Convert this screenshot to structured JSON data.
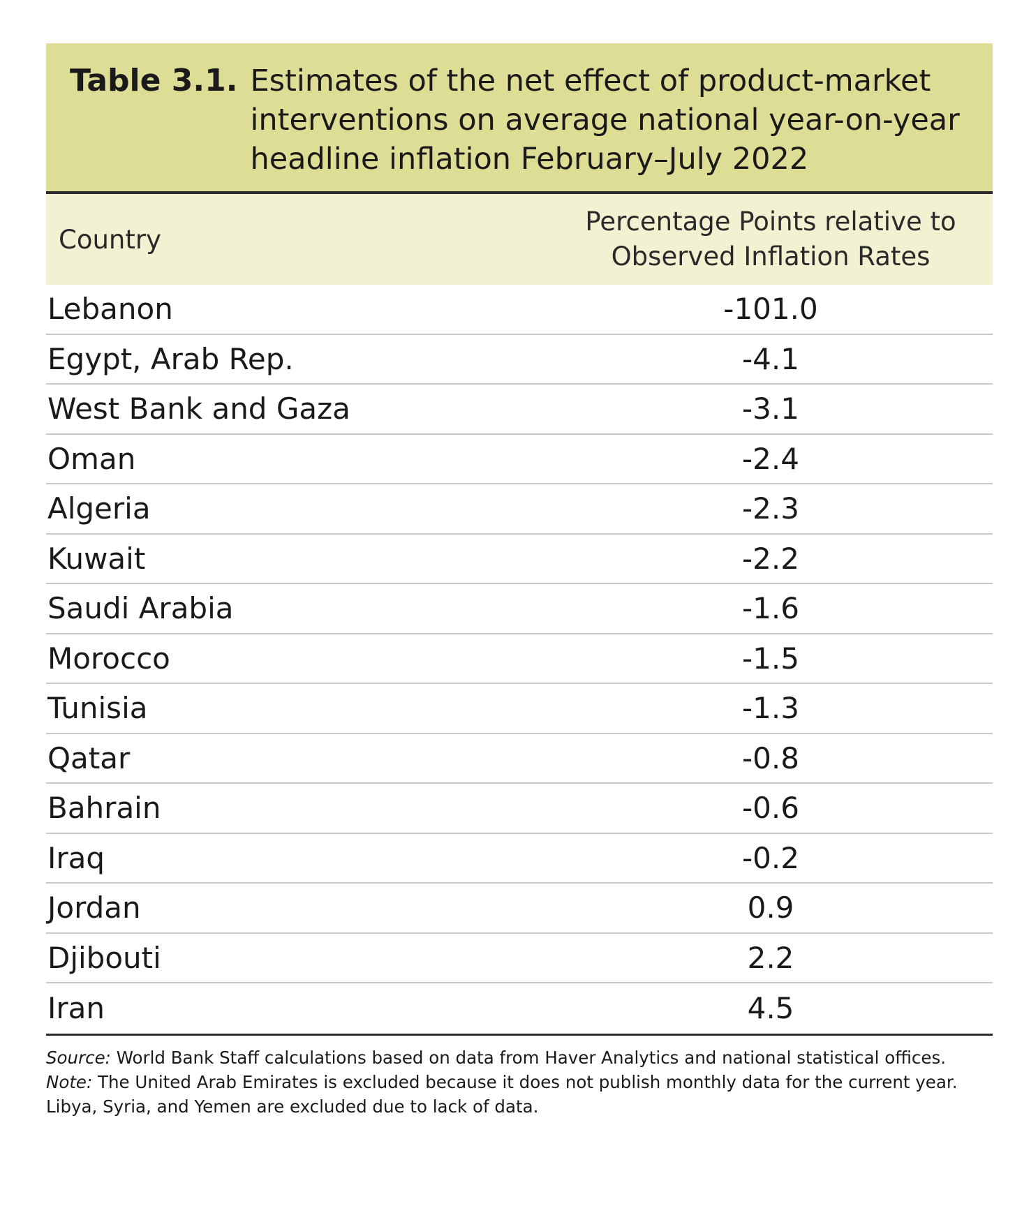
{
  "title": {
    "label": "Table 3.1.",
    "lines": [
      "Estimates of the net effect of product-market",
      "interventions on average national year-on-year",
      "headline inflation February–July 2022"
    ]
  },
  "columns": {
    "country": "Country",
    "value_line1": "Percentage Points relative to",
    "value_line2": "Observed Inflation Rates"
  },
  "rows": [
    {
      "country": "Lebanon",
      "value": "-101.0"
    },
    {
      "country": "Egypt, Arab Rep.",
      "value": "-4.1"
    },
    {
      "country": "West Bank and Gaza",
      "value": "-3.1"
    },
    {
      "country": "Oman",
      "value": "-2.4"
    },
    {
      "country": "Algeria",
      "value": "-2.3"
    },
    {
      "country": "Kuwait",
      "value": "-2.2"
    },
    {
      "country": "Saudi Arabia",
      "value": "-1.6"
    },
    {
      "country": "Morocco",
      "value": "-1.5"
    },
    {
      "country": "Tunisia",
      "value": "-1.3"
    },
    {
      "country": "Qatar",
      "value": "-0.8"
    },
    {
      "country": "Bahrain",
      "value": "-0.6"
    },
    {
      "country": "Iraq",
      "value": "-0.2"
    },
    {
      "country": "Jordan",
      "value": "0.9"
    },
    {
      "country": "Djibouti",
      "value": "2.2"
    },
    {
      "country": "Iran",
      "value": "4.5"
    }
  ],
  "notes": {
    "source_label": "Source:",
    "source_text": " World Bank Staff calculations based on data from Haver Analytics and national statistical offices.",
    "note_label": "Note:",
    "note_text": " The United Arab Emirates is excluded because it does not publish monthly data for the current year. Libya, Syria, and Yemen are excluded due to lack of data."
  },
  "colors": {
    "title_background": "#dedd96",
    "header_background": "#f2f1d2",
    "rule_dark": "#2a2a2a",
    "rule_light": "#c8c8c8"
  }
}
